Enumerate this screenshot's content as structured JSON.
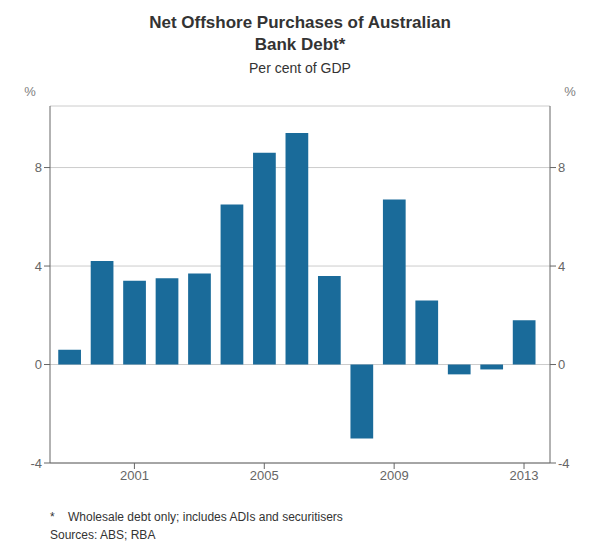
{
  "chart_data": {
    "type": "bar",
    "title": "Net Offshore Purchases of Australian\nBank Debt*",
    "subtitle": "Per cent of GDP",
    "x": [
      1999,
      2000,
      2001,
      2002,
      2003,
      2004,
      2005,
      2006,
      2007,
      2008,
      2009,
      2010,
      2011,
      2012,
      2013
    ],
    "values": [
      0.6,
      4.2,
      3.4,
      3.5,
      3.7,
      6.5,
      8.6,
      9.4,
      3.6,
      -3.0,
      6.7,
      2.6,
      -0.4,
      -0.2,
      1.8
    ],
    "color": "#1a6b9a",
    "xlim": [
      1998.4,
      2013.8
    ],
    "xticks": [
      2001,
      2005,
      2009,
      2013
    ],
    "ylim": [
      -4,
      10.5
    ],
    "yticks": [
      -4,
      0,
      4,
      8
    ],
    "y2lim": [
      -4,
      10.5
    ],
    "y2ticks": [
      -4,
      0,
      4,
      8
    ],
    "ylabel": "%",
    "y2label": "%",
    "grid": true,
    "annotations": [
      "*    Wholesale debt only; includes ADIs and securitisers",
      "Sources: ABS; RBA"
    ]
  }
}
